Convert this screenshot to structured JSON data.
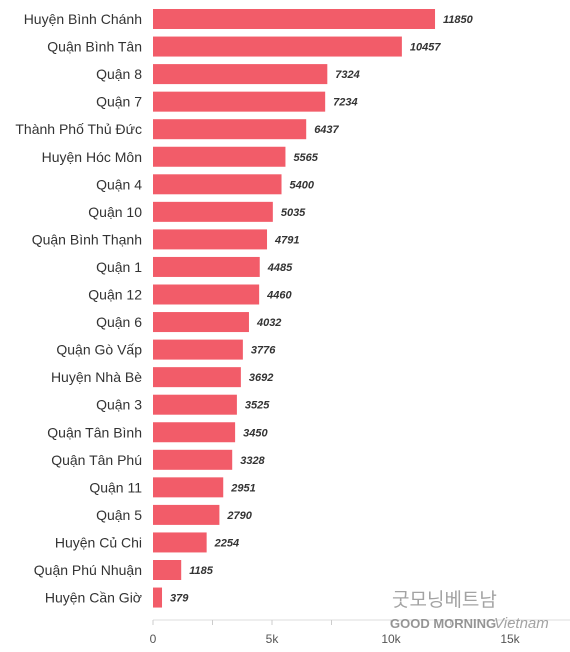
{
  "chart_data": {
    "type": "bar",
    "orientation": "horizontal",
    "categories": [
      "Huyện Bình Chánh",
      "Quận Bình Tân",
      "Quận 8",
      "Quận 7",
      "Thành Phố Thủ Đức",
      "Huyện Hóc Môn",
      "Quận 4",
      "Quận 10",
      "Quận Bình Thạnh",
      "Quận 1",
      "Quận 12",
      "Quận 6",
      "Quận Gò Vấp",
      "Huyện Nhà Bè",
      "Quận 3",
      "Quận Tân Bình",
      "Quận Tân Phú",
      "Quận 11",
      "Quận 5",
      "Huyện Củ Chi",
      "Quận Phú Nhuận",
      "Huyện Cần Giờ"
    ],
    "values": [
      11850,
      10457,
      7324,
      7234,
      6437,
      5565,
      5400,
      5035,
      4791,
      4485,
      4460,
      4032,
      3776,
      3692,
      3525,
      3450,
      3328,
      2951,
      2790,
      2254,
      1185,
      379
    ],
    "xlim": [
      0,
      15000
    ],
    "xticks": [
      0,
      5000,
      10000,
      15000
    ],
    "xtick_labels": [
      "0",
      "5k",
      "10k",
      "15k"
    ],
    "grid": false,
    "bar_color": "#f25c69",
    "title": "",
    "xlabel": "",
    "ylabel": ""
  },
  "watermark": {
    "korean": "굿모닝베트남",
    "brand_main": "GOOD MORNING",
    "brand_script": "Vietnam"
  }
}
